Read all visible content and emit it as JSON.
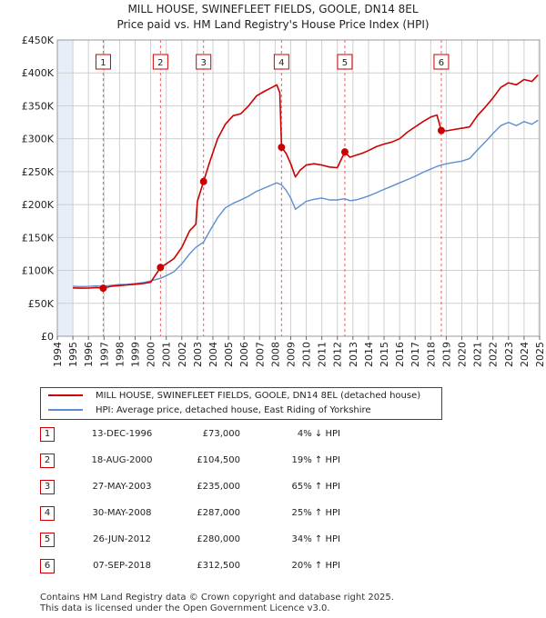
{
  "title_line1": "MILL HOUSE, SWINEFLEET FIELDS, GOOLE, DN14 8EL",
  "title_line2": "Price paid vs. HM Land Registry's House Price Index (HPI)",
  "colors": {
    "price": "#cc0000",
    "hpi": "#5b8fd0",
    "shade": "#e8eef8",
    "grid": "#cfcfcf",
    "vline": "#e06060"
  },
  "legend": [
    "MILL HOUSE, SWINEFLEET FIELDS, GOOLE, DN14 8EL (detached house)",
    "HPI: Average price, detached house, East Riding of Yorkshire"
  ],
  "transactions": [
    {
      "num": "1",
      "date": "13-DEC-1996",
      "price": "£73,000",
      "hpi": "4% ↓ HPI"
    },
    {
      "num": "2",
      "date": "18-AUG-2000",
      "price": "£104,500",
      "hpi": "19% ↑ HPI"
    },
    {
      "num": "3",
      "date": "27-MAY-2003",
      "price": "£235,000",
      "hpi": "65% ↑ HPI"
    },
    {
      "num": "4",
      "date": "30-MAY-2008",
      "price": "£287,000",
      "hpi": "25% ↑ HPI"
    },
    {
      "num": "5",
      "date": "26-JUN-2012",
      "price": "£280,000",
      "hpi": "34% ↑ HPI"
    },
    {
      "num": "6",
      "date": "07-SEP-2018",
      "price": "£312,500",
      "hpi": "20% ↑ HPI"
    }
  ],
  "footer_line1": "Contains HM Land Registry data © Crown copyright and database right 2025.",
  "footer_line2": "This data is licensed under the Open Government Licence v3.0.",
  "chart_data": {
    "type": "line",
    "title": "Price paid vs. HM Land Registry's House Price Index (HPI)",
    "xlim": [
      1994,
      2025
    ],
    "ylim": [
      0,
      450000
    ],
    "x_ticks": [
      "1994",
      "1995",
      "1996",
      "1997",
      "1998",
      "1999",
      "2000",
      "2001",
      "2002",
      "2003",
      "2004",
      "2005",
      "2006",
      "2007",
      "2008",
      "2009",
      "2010",
      "2011",
      "2012",
      "2013",
      "2014",
      "2015",
      "2016",
      "2017",
      "2018",
      "2019",
      "2020",
      "2021",
      "2022",
      "2023",
      "2024",
      "2025"
    ],
    "y_ticks": [
      {
        "value": 0,
        "label": "£0"
      },
      {
        "value": 50000,
        "label": "£50K"
      },
      {
        "value": 100000,
        "label": "£100K"
      },
      {
        "value": 150000,
        "label": "£150K"
      },
      {
        "value": 200000,
        "label": "£200K"
      },
      {
        "value": 250000,
        "label": "£250K"
      },
      {
        "value": 300000,
        "label": "£300K"
      },
      {
        "value": 350000,
        "label": "£350K"
      },
      {
        "value": 400000,
        "label": "£400K"
      },
      {
        "value": 450000,
        "label": "£450K"
      }
    ],
    "grid": true,
    "shaded_ranges": [
      [
        1994,
        1995.0
      ],
      [
        2024.9,
        2025
      ]
    ],
    "series": [
      {
        "name": "MILL HOUSE, SWINEFLEET FIELDS, GOOLE, DN14 8EL (detached house)",
        "color": "#cc0000",
        "points": [
          [
            1995.0,
            73500
          ],
          [
            1995.5,
            73000
          ],
          [
            1996.0,
            73200
          ],
          [
            1996.5,
            74000
          ],
          [
            1996.95,
            73000
          ],
          [
            1997.5,
            76000
          ],
          [
            1998.0,
            77000
          ],
          [
            1998.5,
            78000
          ],
          [
            1999.0,
            79000
          ],
          [
            1999.5,
            80000
          ],
          [
            2000.0,
            82000
          ],
          [
            2000.63,
            104500
          ],
          [
            2001.0,
            110000
          ],
          [
            2001.5,
            118000
          ],
          [
            2002.0,
            135000
          ],
          [
            2002.5,
            160000
          ],
          [
            2002.9,
            170000
          ],
          [
            2003.0,
            205000
          ],
          [
            2003.4,
            235000
          ],
          [
            2003.8,
            265000
          ],
          [
            2004.3,
            300000
          ],
          [
            2004.8,
            322000
          ],
          [
            2005.3,
            335000
          ],
          [
            2005.8,
            338000
          ],
          [
            2006.3,
            350000
          ],
          [
            2006.8,
            365000
          ],
          [
            2007.3,
            372000
          ],
          [
            2007.8,
            378000
          ],
          [
            2008.1,
            382000
          ],
          [
            2008.3,
            370000
          ],
          [
            2008.41,
            287000
          ],
          [
            2008.7,
            278000
          ],
          [
            2009.0,
            262000
          ],
          [
            2009.3,
            242000
          ],
          [
            2009.6,
            252000
          ],
          [
            2010.0,
            260000
          ],
          [
            2010.5,
            262000
          ],
          [
            2011.0,
            260000
          ],
          [
            2011.5,
            257000
          ],
          [
            2012.0,
            256000
          ],
          [
            2012.48,
            280000
          ],
          [
            2012.8,
            272000
          ],
          [
            2013.2,
            275000
          ],
          [
            2013.6,
            278000
          ],
          [
            2014.0,
            282000
          ],
          [
            2014.5,
            288000
          ],
          [
            2015.0,
            292000
          ],
          [
            2015.5,
            295000
          ],
          [
            2016.0,
            300000
          ],
          [
            2016.5,
            310000
          ],
          [
            2017.0,
            318000
          ],
          [
            2017.5,
            326000
          ],
          [
            2018.0,
            333000
          ],
          [
            2018.4,
            336000
          ],
          [
            2018.68,
            312500
          ],
          [
            2019.0,
            312000
          ],
          [
            2019.5,
            314000
          ],
          [
            2020.0,
            316000
          ],
          [
            2020.5,
            318000
          ],
          [
            2021.0,
            335000
          ],
          [
            2021.5,
            348000
          ],
          [
            2022.0,
            362000
          ],
          [
            2022.5,
            378000
          ],
          [
            2023.0,
            385000
          ],
          [
            2023.5,
            382000
          ],
          [
            2024.0,
            390000
          ],
          [
            2024.5,
            387000
          ],
          [
            2024.9,
            397000
          ]
        ]
      },
      {
        "name": "HPI: Average price, detached house, East Riding of Yorkshire",
        "color": "#5b8fd0",
        "points": [
          [
            1995.0,
            76000
          ],
          [
            1995.5,
            75500
          ],
          [
            1996.0,
            75800
          ],
          [
            1996.5,
            76500
          ],
          [
            1996.95,
            76000
          ],
          [
            1997.5,
            77500
          ],
          [
            1998.0,
            78500
          ],
          [
            1998.5,
            79000
          ],
          [
            1999.0,
            80000
          ],
          [
            1999.5,
            81500
          ],
          [
            2000.0,
            84000
          ],
          [
            2000.63,
            88000
          ],
          [
            2001.0,
            92000
          ],
          [
            2001.5,
            98000
          ],
          [
            2002.0,
            110000
          ],
          [
            2002.5,
            125000
          ],
          [
            2002.9,
            135000
          ],
          [
            2003.4,
            143000
          ],
          [
            2003.8,
            160000
          ],
          [
            2004.3,
            180000
          ],
          [
            2004.8,
            195000
          ],
          [
            2005.3,
            202000
          ],
          [
            2005.8,
            207000
          ],
          [
            2006.3,
            213000
          ],
          [
            2006.8,
            220000
          ],
          [
            2007.3,
            225000
          ],
          [
            2007.8,
            230000
          ],
          [
            2008.1,
            233000
          ],
          [
            2008.41,
            230000
          ],
          [
            2008.7,
            222000
          ],
          [
            2009.0,
            210000
          ],
          [
            2009.3,
            193000
          ],
          [
            2009.6,
            198000
          ],
          [
            2010.0,
            205000
          ],
          [
            2010.5,
            208000
          ],
          [
            2011.0,
            210000
          ],
          [
            2011.5,
            207000
          ],
          [
            2012.0,
            207000
          ],
          [
            2012.48,
            209000
          ],
          [
            2012.8,
            206000
          ],
          [
            2013.2,
            207000
          ],
          [
            2013.6,
            210000
          ],
          [
            2014.0,
            213000
          ],
          [
            2014.5,
            218000
          ],
          [
            2015.0,
            223000
          ],
          [
            2015.5,
            228000
          ],
          [
            2016.0,
            233000
          ],
          [
            2016.5,
            238000
          ],
          [
            2017.0,
            243000
          ],
          [
            2017.5,
            249000
          ],
          [
            2018.0,
            254000
          ],
          [
            2018.4,
            258000
          ],
          [
            2018.68,
            260000
          ],
          [
            2019.0,
            262000
          ],
          [
            2019.5,
            264000
          ],
          [
            2020.0,
            266000
          ],
          [
            2020.5,
            270000
          ],
          [
            2021.0,
            283000
          ],
          [
            2021.5,
            295000
          ],
          [
            2022.0,
            308000
          ],
          [
            2022.5,
            320000
          ],
          [
            2023.0,
            325000
          ],
          [
            2023.5,
            320000
          ],
          [
            2024.0,
            326000
          ],
          [
            2024.5,
            322000
          ],
          [
            2024.9,
            328000
          ]
        ]
      }
    ],
    "sales": [
      {
        "label": "1",
        "x": 1996.95,
        "y": 73000
      },
      {
        "label": "2",
        "x": 2000.63,
        "y": 104500
      },
      {
        "label": "3",
        "x": 2003.4,
        "y": 235000
      },
      {
        "label": "4",
        "x": 2008.41,
        "y": 287000
      },
      {
        "label": "5",
        "x": 2012.48,
        "y": 280000
      },
      {
        "label": "6",
        "x": 2018.68,
        "y": 312500
      }
    ]
  }
}
